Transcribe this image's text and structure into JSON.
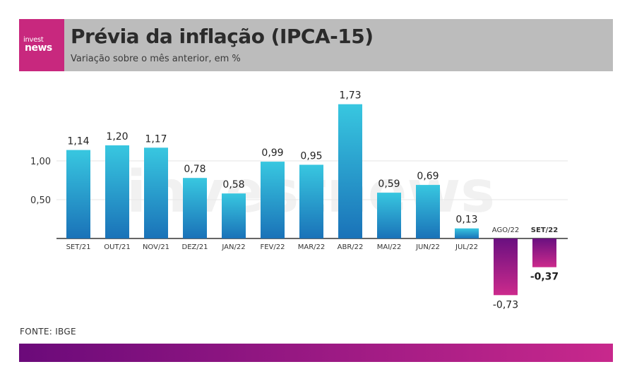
{
  "header": {
    "logo_line1": "invest",
    "logo_line2": "news",
    "title": "Prévia da inflação (IPCA-15)",
    "subtitle": "Variação sobre o mês anterior, em %"
  },
  "source": "FONTE: IBGE",
  "watermark": "investnews",
  "colors": {
    "positive_top": "#38c7e0",
    "positive_bottom": "#1a72b8",
    "negative_top": "#6a1080",
    "negative_bottom": "#cc2a8c",
    "brand": "#c8287e",
    "header_bg": "#bcbcbc"
  },
  "chart_data": {
    "type": "bar",
    "title": "Prévia da inflação (IPCA-15)",
    "subtitle": "Variação sobre o mês anterior, em %",
    "xlabel": "",
    "ylabel": "",
    "categories": [
      "SET/21",
      "OUT/21",
      "NOV/21",
      "DEZ/21",
      "JAN/22",
      "FEV/22",
      "MAR/22",
      "ABR/22",
      "MAI/22",
      "JUN/22",
      "JUL/22",
      "AGO/22",
      "SET/22"
    ],
    "values": [
      1.14,
      1.2,
      1.17,
      0.78,
      0.58,
      0.99,
      0.95,
      1.73,
      0.59,
      0.69,
      0.13,
      -0.73,
      -0.37
    ],
    "value_labels": [
      "1,14",
      "1,20",
      "1,17",
      "0,78",
      "0,58",
      "0,99",
      "0,95",
      "1,73",
      "0,59",
      "0,69",
      "0,13",
      "-0,73",
      "-0,37"
    ],
    "highlight": "SET/22",
    "yticks": [
      0.5,
      1.0
    ],
    "ytick_labels": [
      "0,50",
      "1,00"
    ],
    "ylim": [
      -0.8,
      1.9
    ],
    "grid": true,
    "legend": "none"
  }
}
